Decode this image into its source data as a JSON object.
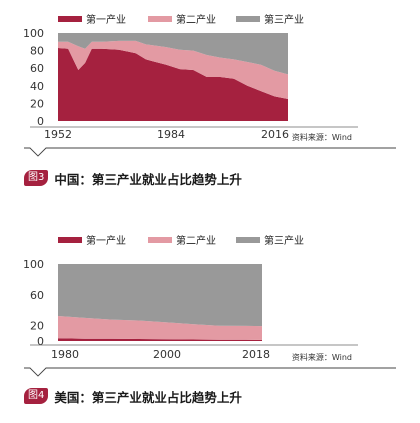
{
  "charts": [
    {
      "type": "area",
      "stacked": true,
      "legend": [
        "第一产业",
        "第二产业",
        "第三产业"
      ],
      "x": [
        1952,
        1955,
        1958,
        1960,
        1962,
        1965,
        1970,
        1975,
        1978,
        1980,
        1984,
        1988,
        1992,
        1996,
        2000,
        2004,
        2008,
        2012,
        2016,
        2020
      ],
      "series": [
        {
          "name": "第一产业",
          "values": [
            83,
            82,
            58,
            66,
            82,
            82,
            81,
            77,
            70,
            68,
            64,
            59,
            58,
            50,
            50,
            48,
            40,
            34,
            28,
            25
          ]
        },
        {
          "name": "第二产业",
          "values": [
            7,
            8,
            27,
            16,
            8,
            8,
            10,
            14,
            17,
            18,
            20,
            22,
            22,
            25,
            22,
            22,
            27,
            30,
            29,
            28
          ]
        },
        {
          "name": "第三产业",
          "values": [
            10,
            10,
            15,
            18,
            10,
            10,
            9,
            9,
            13,
            14,
            16,
            19,
            20,
            25,
            28,
            30,
            33,
            36,
            43,
            47
          ]
        }
      ],
      "yticks": [
        0,
        20,
        40,
        60,
        80,
        100
      ],
      "xticks": [
        1952,
        1984,
        2016
      ],
      "ylim": [
        0,
        100
      ],
      "colors": [
        "#a5213f",
        "#e39aa3",
        "#999999"
      ],
      "source": "资料来源：Wind",
      "fig_label": "图3",
      "title": "中国：第三产业就业占比趋势上升"
    },
    {
      "type": "area",
      "stacked": true,
      "legend": [
        "第一产业",
        "第二产业",
        "第三产业"
      ],
      "x": [
        1980,
        1985,
        1990,
        1995,
        2000,
        2005,
        2010,
        2015,
        2018
      ],
      "series": [
        {
          "name": "第一产业",
          "values": [
            3.5,
            3,
            2.8,
            2.6,
            2.4,
            2,
            1.7,
            1.6,
            1.4
          ]
        },
        {
          "name": "第二产业",
          "values": [
            29,
            27,
            25,
            24,
            22,
            20,
            18,
            18,
            18
          ]
        },
        {
          "name": "第三产业",
          "values": [
            67.5,
            70,
            72.2,
            73.4,
            75.6,
            78,
            80.3,
            80.4,
            80.6
          ]
        }
      ],
      "yticks": [
        0,
        20,
        60,
        100
      ],
      "xticks": [
        1980,
        2000,
        2018
      ],
      "ylim": [
        0,
        100
      ],
      "colors": [
        "#a5213f",
        "#e39aa3",
        "#999999"
      ],
      "source": "资料来源：Wind",
      "fig_label": "图4",
      "title": "美国：第三产业就业占比趋势上升"
    }
  ]
}
